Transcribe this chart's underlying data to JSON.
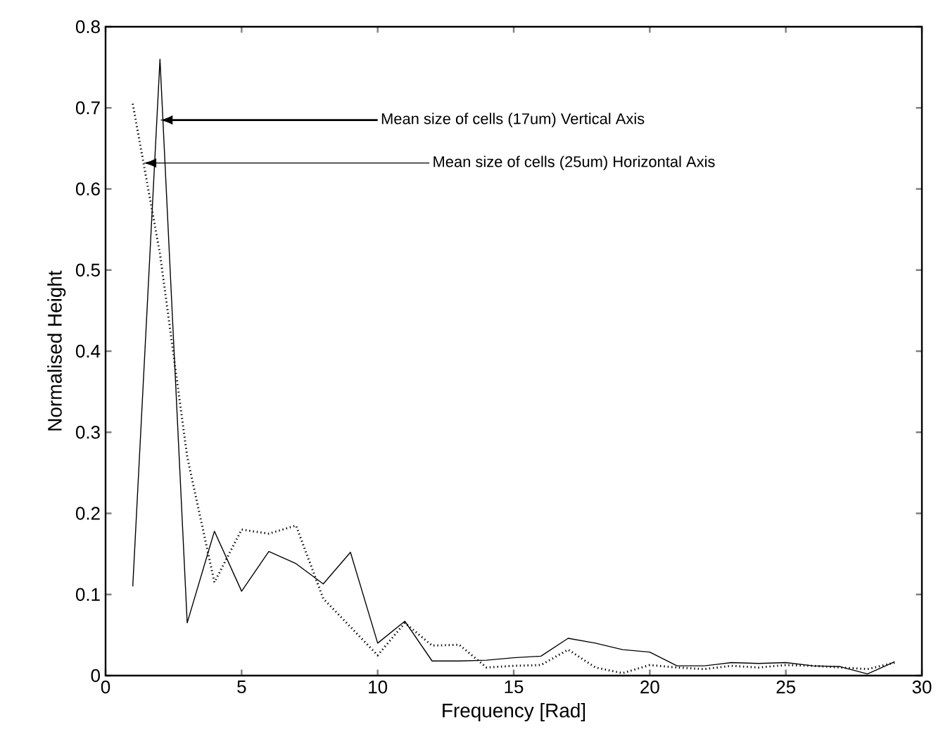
{
  "chart_data": {
    "type": "line",
    "xlabel": "Frequency [Rad]",
    "ylabel": "Normalised Height",
    "x": [
      1,
      2,
      3,
      4,
      5,
      6,
      7,
      8,
      9,
      10,
      11,
      12,
      13,
      14,
      15,
      16,
      17,
      18,
      19,
      20,
      21,
      22,
      23,
      24,
      25,
      26,
      27,
      28,
      29
    ],
    "series": [
      {
        "color": "#000000",
        "line_style": "solid",
        "values": [
          0.11,
          0.76,
          0.065,
          0.178,
          0.104,
          0.153,
          0.138,
          0.113,
          0.152,
          0.04,
          0.067,
          0.018,
          0.018,
          0.019,
          0.022,
          0.024,
          0.046,
          0.04,
          0.032,
          0.029,
          0.012,
          0.012,
          0.016,
          0.015,
          0.016,
          0.012,
          0.011,
          0.002,
          0.017
        ]
      },
      {
        "color": "#000000",
        "line_style": "dotted",
        "values": [
          0.705,
          0.52,
          0.27,
          0.115,
          0.18,
          0.175,
          0.185,
          0.095,
          0.06,
          0.025,
          0.065,
          0.037,
          0.038,
          0.01,
          0.012,
          0.013,
          0.032,
          0.01,
          0.003,
          0.013,
          0.01,
          0.008,
          0.012,
          0.01,
          0.013,
          0.012,
          0.01,
          0.008,
          0.016
        ]
      }
    ],
    "annotations": [
      {
        "text": "Mean size of cells (17um) Vertical Axis",
        "x": 2,
        "y": 0.685
      },
      {
        "text": "Mean size of cells (25um) Horizontal Axis",
        "x": 1.4,
        "y": 0.632
      }
    ],
    "xlim": [
      0,
      30
    ],
    "ylim": [
      0,
      0.8
    ],
    "xticks": [
      0,
      5,
      10,
      15,
      20,
      25,
      30
    ],
    "yticks": [
      0,
      0.1,
      0.2,
      0.3,
      0.4,
      0.5,
      0.6,
      0.7,
      0.8
    ],
    "marker": "none"
  }
}
